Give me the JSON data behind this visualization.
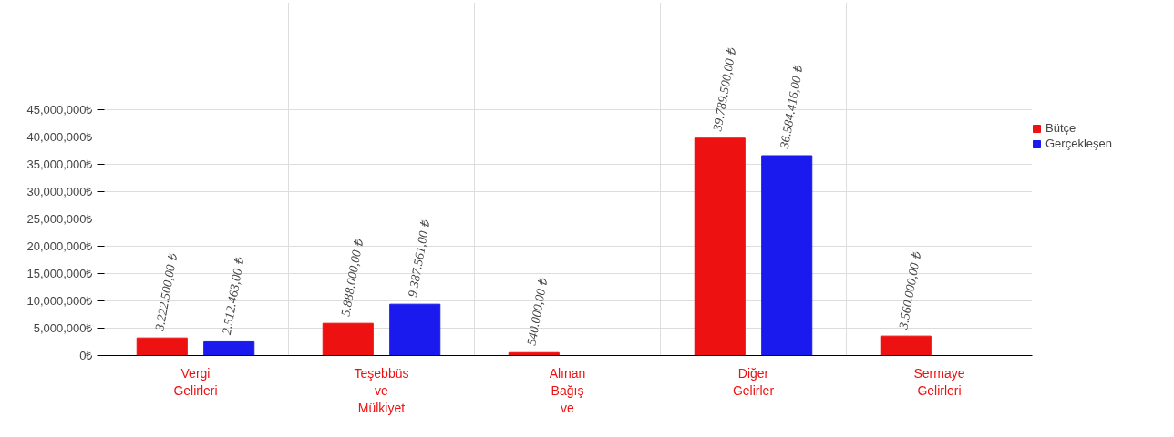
{
  "chart_data": {
    "type": "bar",
    "categories": [
      "Vergi\nGelirleri",
      "Teşebbüs\nve\nMülkiyet",
      "Alınan\nBağış\nve",
      "Diğer\nGelirler",
      "Sermaye\nGelirleri"
    ],
    "series": [
      {
        "name": "Bütçe",
        "color": "#ee1111",
        "values": [
          3222500,
          5888000,
          540000,
          39789500,
          3560000
        ],
        "value_labels": [
          "3.222.500,00 ₺",
          "5.888.000,00 ₺",
          "540.000,00 ₺",
          "39.789.500,00 ₺",
          "3.560.000,00 ₺"
        ]
      },
      {
        "name": "Gerçekleşen",
        "color": "#1a1aee",
        "values": [
          2512463,
          9387561,
          null,
          36584416,
          null
        ],
        "value_labels": [
          "2.512.463,00 ₺",
          "9.387.561,00 ₺",
          null,
          "36.584.416,00 ₺",
          null
        ]
      }
    ],
    "ylim": [
      0,
      45000000
    ],
    "yticks": [
      {
        "value": 0,
        "label": "0₺"
      },
      {
        "value": 5000000,
        "label": "5,000,000₺"
      },
      {
        "value": 10000000,
        "label": "10,000,000₺"
      },
      {
        "value": 15000000,
        "label": "15,000,000₺"
      },
      {
        "value": 20000000,
        "label": "20,000,000₺"
      },
      {
        "value": 25000000,
        "label": "25,000,000₺"
      },
      {
        "value": 30000000,
        "label": "30,000,000₺"
      },
      {
        "value": 35000000,
        "label": "35,000,000₺"
      },
      {
        "value": 40000000,
        "label": "40,000,000₺"
      },
      {
        "value": 45000000,
        "label": "45,000,000₺"
      }
    ],
    "grid": true,
    "legend": "right"
  }
}
